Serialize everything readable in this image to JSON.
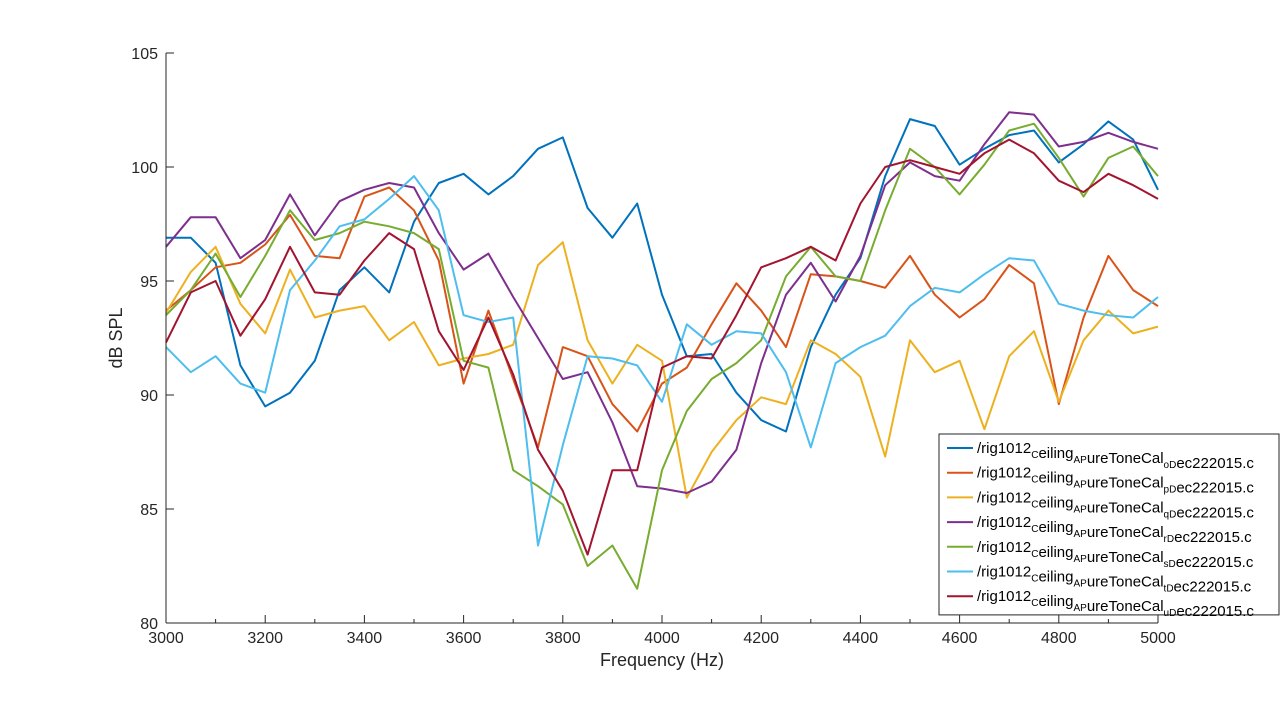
{
  "chart_data": {
    "type": "line",
    "title": "",
    "xlabel": "Frequency (Hz)",
    "ylabel": "dB SPL",
    "xlim": [
      3000,
      5000
    ],
    "ylim": [
      80,
      105
    ],
    "xticks": [
      3000,
      3200,
      3400,
      3600,
      3800,
      4000,
      4200,
      4400,
      4600,
      4800,
      5000
    ],
    "yticks": [
      80,
      85,
      90,
      95,
      100,
      105
    ],
    "xtick_labels": [
      "3000",
      "3200",
      "3400",
      "3600",
      "3800",
      "4000",
      "4200",
      "4400",
      "4600",
      "4800",
      "5000"
    ],
    "ytick_labels": [
      "80",
      "85",
      "90",
      "95",
      "100",
      "105"
    ],
    "grid": false,
    "legend_position": "bottom-right",
    "x": [
      3000,
      3050,
      3100,
      3150,
      3200,
      3250,
      3300,
      3350,
      3400,
      3450,
      3500,
      3550,
      3600,
      3650,
      3700,
      3750,
      3800,
      3850,
      3900,
      3950,
      4000,
      4050,
      4100,
      4150,
      4200,
      4250,
      4300,
      4350,
      4400,
      4450,
      4500,
      4550,
      4600,
      4650,
      4700,
      4750,
      4800,
      4850,
      4900,
      4950,
      5000
    ],
    "series": [
      {
        "name": "/rig1012_Ceiling_APureToneCal_oDec222015.c",
        "color": "#0072BD",
        "values": [
          96.9,
          96.9,
          95.8,
          91.3,
          89.5,
          90.1,
          91.5,
          94.6,
          95.6,
          94.5,
          97.6,
          99.3,
          99.7,
          98.8,
          99.6,
          100.8,
          101.3,
          98.2,
          96.9,
          98.4,
          94.4,
          91.7,
          91.8,
          90.1,
          88.9,
          88.4,
          92.1,
          94.4,
          96.0,
          99.6,
          102.1,
          101.8,
          100.1,
          100.8,
          101.4,
          101.6,
          100.2,
          101.0,
          102.0,
          101.2,
          99.0
        ]
      },
      {
        "name": "/rig1012_Ceiling_APureToneCal_pDec222015.c",
        "color": "#D95319",
        "values": [
          93.7,
          94.6,
          95.6,
          95.8,
          96.6,
          97.9,
          96.1,
          96.0,
          98.7,
          99.1,
          98.1,
          95.9,
          90.5,
          93.7,
          90.7,
          87.7,
          92.1,
          91.7,
          89.6,
          88.4,
          90.5,
          91.2,
          93.1,
          94.9,
          93.7,
          92.1,
          95.3,
          95.2,
          95.0,
          94.7,
          96.1,
          94.4,
          93.4,
          94.2,
          95.7,
          94.9,
          89.6,
          93.4,
          96.1,
          94.6,
          93.9
        ]
      },
      {
        "name": "/rig1012_Ceiling_APureToneCal_qDec222015.c",
        "color": "#EDB120",
        "values": [
          93.6,
          95.4,
          96.5,
          94.0,
          92.7,
          95.5,
          93.4,
          93.7,
          93.9,
          92.4,
          93.2,
          91.3,
          91.6,
          91.8,
          92.2,
          95.7,
          96.7,
          92.4,
          90.5,
          92.2,
          91.5,
          85.5,
          87.5,
          88.9,
          89.9,
          89.6,
          92.4,
          91.8,
          90.8,
          87.3,
          92.4,
          91.0,
          91.5,
          88.5,
          91.7,
          92.8,
          89.7,
          92.4,
          93.7,
          92.7,
          93.0
        ]
      },
      {
        "name": "/rig1012_Ceiling_APureToneCal_rDec222015.c",
        "color": "#7E2F8E",
        "values": [
          96.5,
          97.8,
          97.8,
          96.0,
          96.8,
          98.8,
          97.0,
          98.5,
          99.0,
          99.3,
          99.1,
          97.1,
          95.5,
          96.2,
          94.3,
          92.5,
          90.7,
          91.0,
          88.8,
          86.0,
          85.9,
          85.7,
          86.2,
          87.6,
          91.4,
          94.4,
          95.8,
          94.1,
          96.1,
          99.2,
          100.2,
          99.6,
          99.4,
          101.0,
          102.4,
          102.3,
          100.9,
          101.1,
          101.5,
          101.1,
          100.8
        ]
      },
      {
        "name": "/rig1012_Ceiling_APureToneCal_sDec222015.c",
        "color": "#77AC30",
        "values": [
          93.5,
          94.6,
          96.2,
          94.3,
          96.1,
          98.1,
          96.8,
          97.1,
          97.6,
          97.4,
          97.1,
          96.4,
          91.5,
          91.2,
          86.7,
          86.0,
          85.2,
          82.5,
          83.4,
          81.5,
          86.7,
          89.3,
          90.7,
          91.4,
          92.4,
          95.2,
          96.5,
          95.2,
          95.0,
          98.1,
          100.8,
          100.0,
          98.8,
          100.1,
          101.6,
          101.9,
          100.4,
          98.7,
          100.4,
          100.9,
          99.6
        ]
      },
      {
        "name": "/rig1012_Ceiling_APureToneCal_tDec222015.c",
        "color": "#4DBEEE",
        "values": [
          92.1,
          91.0,
          91.7,
          90.5,
          90.1,
          94.6,
          95.9,
          97.4,
          97.7,
          98.6,
          99.6,
          98.1,
          93.5,
          93.2,
          93.4,
          83.4,
          87.8,
          91.7,
          91.6,
          91.3,
          89.7,
          93.1,
          92.2,
          92.8,
          92.7,
          91.0,
          87.7,
          91.4,
          92.1,
          92.6,
          93.9,
          94.7,
          94.5,
          95.3,
          96.0,
          95.9,
          94.0,
          93.7,
          93.5,
          93.4,
          94.3
        ]
      },
      {
        "name": "/rig1012_Ceiling_APureToneCal_uDec222015.c",
        "color": "#A2142F",
        "values": [
          92.3,
          94.5,
          95.0,
          92.6,
          94.2,
          96.5,
          94.5,
          94.4,
          95.9,
          97.1,
          96.4,
          92.8,
          91.1,
          93.4,
          90.9,
          87.6,
          85.8,
          83.0,
          86.7,
          86.7,
          91.2,
          91.7,
          91.6,
          93.5,
          95.6,
          96.0,
          96.5,
          95.9,
          98.4,
          100.0,
          100.3,
          100.0,
          99.7,
          100.6,
          101.2,
          100.6,
          99.4,
          98.9,
          99.7,
          99.2,
          98.6
        ]
      }
    ],
    "legend_entries": [
      {
        "base": "/rig1012",
        "s1": "C",
        "mid1": "eiling",
        "s2": "AP",
        "mid2": "ureToneCal",
        "s3": "oD",
        "tail": "ec222015.c"
      },
      {
        "base": "/rig1012",
        "s1": "C",
        "mid1": "eiling",
        "s2": "AP",
        "mid2": "ureToneCal",
        "s3": "pD",
        "tail": "ec222015.c"
      },
      {
        "base": "/rig1012",
        "s1": "C",
        "mid1": "eiling",
        "s2": "AP",
        "mid2": "ureToneCal",
        "s3": "qD",
        "tail": "ec222015.c"
      },
      {
        "base": "/rig1012",
        "s1": "C",
        "mid1": "eiling",
        "s2": "AP",
        "mid2": "ureToneCal",
        "s3": "rD",
        "tail": "ec222015.c"
      },
      {
        "base": "/rig1012",
        "s1": "C",
        "mid1": "eiling",
        "s2": "AP",
        "mid2": "ureToneCal",
        "s3": "sD",
        "tail": "ec222015.c"
      },
      {
        "base": "/rig1012",
        "s1": "C",
        "mid1": "eiling",
        "s2": "AP",
        "mid2": "ureToneCal",
        "s3": "tD",
        "tail": "ec222015.c"
      },
      {
        "base": "/rig1012",
        "s1": "C",
        "mid1": "eiling",
        "s2": "AP",
        "mid2": "ureToneCal",
        "s3": "uD",
        "tail": "ec222015.c"
      }
    ]
  }
}
